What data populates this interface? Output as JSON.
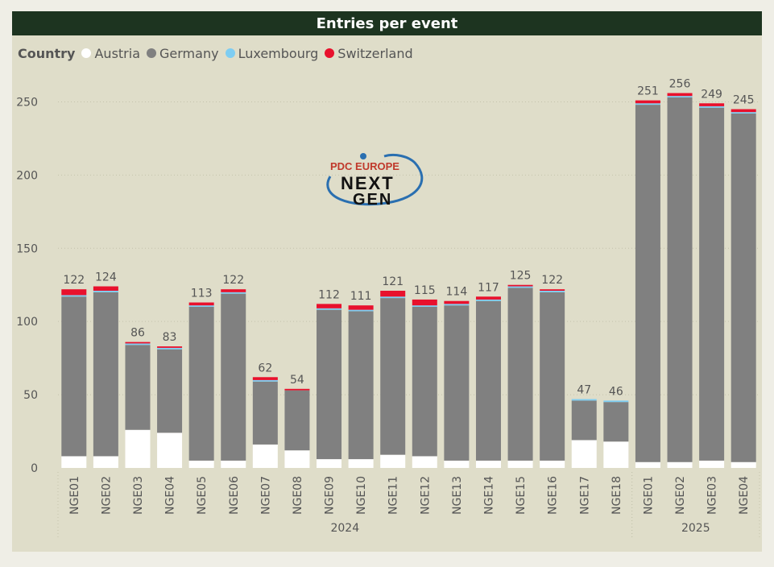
{
  "title": "Entries per event",
  "legend": {
    "title": "Country",
    "items": [
      {
        "name": "Austria",
        "color": "#ffffff"
      },
      {
        "name": "Germany",
        "color": "#808080"
      },
      {
        "name": "Luxembourg",
        "color": "#7ecdf2"
      },
      {
        "name": "Switzerland",
        "color": "#e8112d"
      }
    ]
  },
  "logo": {
    "top": "PDC EUROPE",
    "bottom_line1": "NEXT",
    "bottom_line2": "GEN"
  },
  "chart_data": {
    "type": "bar",
    "stacked": true,
    "title": "Entries per event",
    "categories": [
      "NGE01",
      "NGE02",
      "NGE03",
      "NGE04",
      "NGE05",
      "NGE06",
      "NGE07",
      "NGE08",
      "NGE09",
      "NGE10",
      "NGE11",
      "NGE12",
      "NGE13",
      "NGE14",
      "NGE15",
      "NGE16",
      "NGE17",
      "NGE18",
      "NGE01",
      "NGE02",
      "NGE03",
      "NGE04"
    ],
    "groups": [
      {
        "label": "2024",
        "count": 18
      },
      {
        "label": "2025",
        "count": 4
      }
    ],
    "series": [
      {
        "name": "Austria",
        "color": "#ffffff",
        "values": [
          8,
          8,
          26,
          24,
          5,
          5,
          16,
          12,
          6,
          6,
          9,
          8,
          5,
          5,
          5,
          5,
          19,
          18,
          4,
          4,
          5,
          4
        ]
      },
      {
        "name": "Germany",
        "color": "#808080",
        "values": [
          109,
          112,
          58,
          57,
          105,
          114,
          43,
          41,
          102,
          101,
          107,
          102,
          106,
          109,
          118,
          115,
          27,
          27,
          244,
          249,
          241,
          238
        ]
      },
      {
        "name": "Luxembourg",
        "color": "#7ecdf2",
        "values": [
          1,
          1,
          1,
          1,
          1,
          1,
          1,
          0,
          1,
          1,
          1,
          1,
          1,
          1,
          1,
          1,
          1,
          1,
          1,
          1,
          1,
          1
        ]
      },
      {
        "name": "Switzerland",
        "color": "#e8112d",
        "values": [
          4,
          3,
          1,
          1,
          2,
          2,
          2,
          1,
          3,
          3,
          4,
          4,
          2,
          2,
          1,
          1,
          0,
          0,
          2,
          2,
          2,
          2
        ]
      }
    ],
    "totals": [
      122,
      124,
      86,
      83,
      113,
      122,
      62,
      54,
      112,
      111,
      121,
      115,
      114,
      117,
      125,
      122,
      47,
      46,
      251,
      256,
      249,
      245
    ],
    "ylim": [
      0,
      275
    ],
    "yticks": [
      0,
      50,
      100,
      150,
      200,
      250
    ],
    "grid": true,
    "legend_position": "top-left"
  }
}
